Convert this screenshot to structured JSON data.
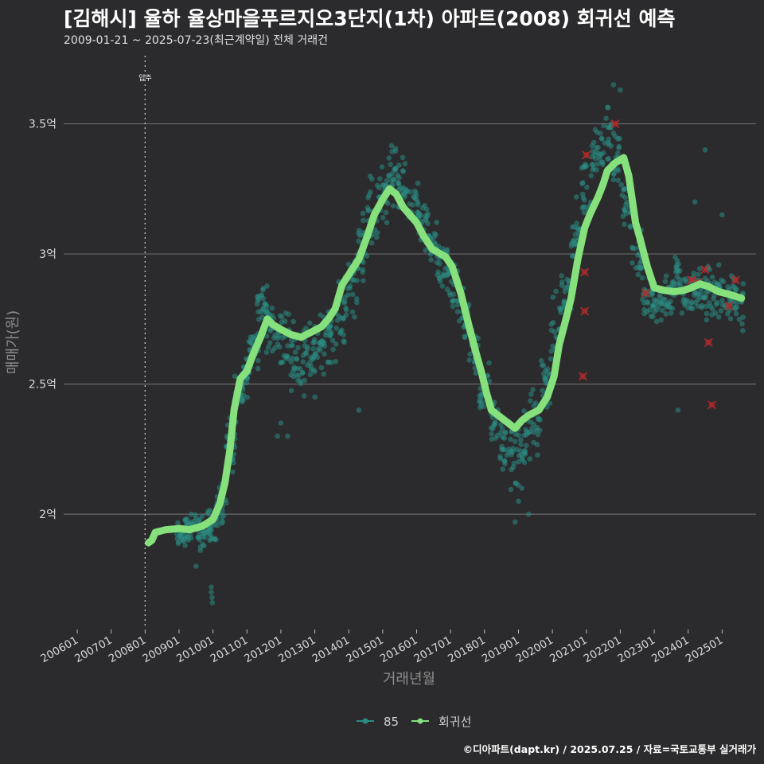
{
  "title": "[김해시] 율하 율상마을푸르지오3단지(1차) 아파트(2008) 회귀선 예측",
  "subtitle": "2009-01-21 ~ 2025-07-23(최근계약일) 전체 거래건",
  "credit": "©디아파트(dapt.kr) / 2025.07.25 / 자료=국토교통부 실거래가",
  "colors": {
    "background": "#2b2b2d",
    "grid": "#6a6a6c",
    "scatter": "#2a8c84",
    "regression": "#86e07c",
    "cancel_mark": "#b52a2a"
  },
  "chart_data": {
    "type": "scatter",
    "xlabel": "거래년월",
    "ylabel": "매매가(원)",
    "xlim": [
      2005.6,
      2026.0
    ],
    "ylim": [
      1.56,
      3.78
    ],
    "yticks": [
      {
        "value": 2.0,
        "label": "2억"
      },
      {
        "value": 2.5,
        "label": "2.5억"
      },
      {
        "value": 3.0,
        "label": "3억"
      },
      {
        "value": 3.5,
        "label": "3.5억"
      }
    ],
    "xticks": [
      {
        "value": 2006.0,
        "label": "200601"
      },
      {
        "value": 2007.0,
        "label": "200701"
      },
      {
        "value": 2008.0,
        "label": "200801"
      },
      {
        "value": 2009.0,
        "label": "200901"
      },
      {
        "value": 2010.0,
        "label": "201001"
      },
      {
        "value": 2011.0,
        "label": "201101"
      },
      {
        "value": 2012.0,
        "label": "201201"
      },
      {
        "value": 2013.0,
        "label": "201301"
      },
      {
        "value": 2014.0,
        "label": "201401"
      },
      {
        "value": 2015.0,
        "label": "201501"
      },
      {
        "value": 2016.0,
        "label": "201601"
      },
      {
        "value": 2017.0,
        "label": "201701"
      },
      {
        "value": 2018.0,
        "label": "201801"
      },
      {
        "value": 2019.0,
        "label": "201901"
      },
      {
        "value": 2020.0,
        "label": "202001"
      },
      {
        "value": 2021.0,
        "label": "202101"
      },
      {
        "value": 2022.0,
        "label": "202201"
      },
      {
        "value": 2023.0,
        "label": "202301"
      },
      {
        "value": 2024.0,
        "label": "202401"
      },
      {
        "value": 2025.0,
        "label": "202501"
      }
    ],
    "annotation": {
      "x": 2008.0,
      "label": "입주"
    },
    "legend": [
      {
        "name": "85",
        "type": "scatter"
      },
      {
        "name": "회귀선",
        "type": "line"
      }
    ],
    "legend_position": "bottom",
    "band": [
      [
        2009.05,
        1.92,
        0.07
      ],
      [
        2009.3,
        1.94,
        0.08
      ],
      [
        2009.55,
        1.93,
        0.1
      ],
      [
        2009.8,
        1.94,
        0.09
      ],
      [
        2010.0,
        1.97,
        0.1
      ],
      [
        2010.25,
        2.05,
        0.15
      ],
      [
        2010.5,
        2.25,
        0.15
      ],
      [
        2010.75,
        2.45,
        0.12
      ],
      [
        2011.0,
        2.55,
        0.12
      ],
      [
        2011.2,
        2.65,
        0.12
      ],
      [
        2011.45,
        2.8,
        0.12
      ],
      [
        2011.7,
        2.72,
        0.16
      ],
      [
        2012.0,
        2.68,
        0.18
      ],
      [
        2012.3,
        2.63,
        0.18
      ],
      [
        2012.6,
        2.6,
        0.18
      ],
      [
        2012.9,
        2.62,
        0.18
      ],
      [
        2013.2,
        2.66,
        0.16
      ],
      [
        2013.5,
        2.7,
        0.16
      ],
      [
        2013.8,
        2.78,
        0.17
      ],
      [
        2014.1,
        2.9,
        0.2
      ],
      [
        2014.4,
        3.0,
        0.2
      ],
      [
        2014.7,
        3.15,
        0.2
      ],
      [
        2015.0,
        3.25,
        0.18
      ],
      [
        2015.3,
        3.3,
        0.16
      ],
      [
        2015.6,
        3.25,
        0.14
      ],
      [
        2015.9,
        3.2,
        0.14
      ],
      [
        2016.2,
        3.1,
        0.14
      ],
      [
        2016.5,
        3.0,
        0.16
      ],
      [
        2016.8,
        2.95,
        0.16
      ],
      [
        2017.1,
        2.85,
        0.16
      ],
      [
        2017.4,
        2.75,
        0.18
      ],
      [
        2017.7,
        2.6,
        0.16
      ],
      [
        2018.0,
        2.48,
        0.15
      ],
      [
        2018.3,
        2.35,
        0.15
      ],
      [
        2018.6,
        2.28,
        0.18
      ],
      [
        2018.9,
        2.22,
        0.2
      ],
      [
        2019.2,
        2.28,
        0.18
      ],
      [
        2019.5,
        2.35,
        0.18
      ],
      [
        2019.8,
        2.5,
        0.16
      ],
      [
        2020.1,
        2.7,
        0.18
      ],
      [
        2020.4,
        2.85,
        0.18
      ],
      [
        2020.7,
        3.05,
        0.2
      ],
      [
        2021.0,
        3.25,
        0.18
      ],
      [
        2021.3,
        3.4,
        0.15
      ],
      [
        2021.6,
        3.45,
        0.15
      ],
      [
        2021.9,
        3.35,
        0.16
      ],
      [
        2022.2,
        3.2,
        0.16
      ],
      [
        2022.5,
        3.0,
        0.15
      ],
      [
        2022.8,
        2.85,
        0.14
      ],
      [
        2023.1,
        2.82,
        0.15
      ],
      [
        2023.4,
        2.85,
        0.15
      ],
      [
        2023.7,
        2.88,
        0.15
      ],
      [
        2024.0,
        2.85,
        0.15
      ],
      [
        2024.3,
        2.86,
        0.15
      ],
      [
        2024.6,
        2.85,
        0.16
      ],
      [
        2024.9,
        2.84,
        0.16
      ],
      [
        2025.2,
        2.84,
        0.16
      ],
      [
        2025.5,
        2.83,
        0.16
      ]
    ],
    "outliers": [
      [
        2009.95,
        1.7
      ],
      [
        2009.97,
        1.68
      ],
      [
        2009.98,
        1.66
      ],
      [
        2009.95,
        1.72
      ],
      [
        2009.5,
        1.8
      ],
      [
        2011.9,
        2.3
      ],
      [
        2012.0,
        2.35
      ],
      [
        2012.2,
        2.3
      ],
      [
        2013.0,
        2.45
      ],
      [
        2014.3,
        2.4
      ],
      [
        2019.0,
        2.05
      ],
      [
        2019.3,
        2.0
      ],
      [
        2018.9,
        1.97
      ],
      [
        2019.1,
        2.1
      ],
      [
        2022.0,
        3.63
      ],
      [
        2021.8,
        3.65
      ],
      [
        2024.5,
        3.4
      ],
      [
        2023.7,
        2.4
      ],
      [
        2025.0,
        3.15
      ],
      [
        2024.2,
        3.2
      ]
    ],
    "cancel_marks": [
      [
        2021.0,
        3.38
      ],
      [
        2021.85,
        3.5
      ],
      [
        2020.95,
        2.93
      ],
      [
        2020.95,
        2.78
      ],
      [
        2020.9,
        2.53
      ],
      [
        2022.75,
        2.85
      ],
      [
        2024.1,
        2.9
      ],
      [
        2024.5,
        2.94
      ],
      [
        2024.6,
        2.66
      ],
      [
        2024.7,
        2.42
      ],
      [
        2025.2,
        2.8
      ],
      [
        2025.4,
        2.9
      ],
      [
        2024.3,
        2.89
      ]
    ],
    "regression": [
      [
        2008.1,
        1.89
      ],
      [
        2008.2,
        1.9
      ],
      [
        2008.3,
        1.93
      ],
      [
        2008.6,
        1.94
      ],
      [
        2009.0,
        1.945
      ],
      [
        2009.3,
        1.94
      ],
      [
        2009.7,
        1.955
      ],
      [
        2010.0,
        1.98
      ],
      [
        2010.2,
        2.04
      ],
      [
        2010.35,
        2.12
      ],
      [
        2010.5,
        2.25
      ],
      [
        2010.62,
        2.4
      ],
      [
        2010.8,
        2.52
      ],
      [
        2011.0,
        2.55
      ],
      [
        2011.2,
        2.62
      ],
      [
        2011.4,
        2.68
      ],
      [
        2011.6,
        2.75
      ],
      [
        2011.75,
        2.73
      ],
      [
        2012.0,
        2.71
      ],
      [
        2012.3,
        2.69
      ],
      [
        2012.6,
        2.68
      ],
      [
        2012.9,
        2.7
      ],
      [
        2013.2,
        2.72
      ],
      [
        2013.4,
        2.75
      ],
      [
        2013.6,
        2.79
      ],
      [
        2013.8,
        2.88
      ],
      [
        2014.0,
        2.92
      ],
      [
        2014.3,
        2.98
      ],
      [
        2014.55,
        3.07
      ],
      [
        2014.75,
        3.15
      ],
      [
        2015.0,
        3.21
      ],
      [
        2015.2,
        3.25
      ],
      [
        2015.4,
        3.23
      ],
      [
        2015.6,
        3.18
      ],
      [
        2015.8,
        3.15
      ],
      [
        2016.0,
        3.12
      ],
      [
        2016.2,
        3.07
      ],
      [
        2016.45,
        3.02
      ],
      [
        2016.7,
        3.0
      ],
      [
        2016.85,
        2.99
      ],
      [
        2017.05,
        2.95
      ],
      [
        2017.3,
        2.85
      ],
      [
        2017.55,
        2.72
      ],
      [
        2017.75,
        2.62
      ],
      [
        2017.9,
        2.55
      ],
      [
        2018.05,
        2.47
      ],
      [
        2018.2,
        2.4
      ],
      [
        2018.5,
        2.37
      ],
      [
        2018.7,
        2.35
      ],
      [
        2018.9,
        2.33
      ],
      [
        2019.1,
        2.36
      ],
      [
        2019.3,
        2.38
      ],
      [
        2019.6,
        2.4
      ],
      [
        2019.85,
        2.45
      ],
      [
        2020.05,
        2.53
      ],
      [
        2020.2,
        2.65
      ],
      [
        2020.4,
        2.75
      ],
      [
        2020.55,
        2.83
      ],
      [
        2020.75,
        2.98
      ],
      [
        2020.95,
        3.1
      ],
      [
        2021.1,
        3.15
      ],
      [
        2021.35,
        3.22
      ],
      [
        2021.5,
        3.27
      ],
      [
        2021.62,
        3.32
      ],
      [
        2021.85,
        3.35
      ],
      [
        2022.1,
        3.37
      ],
      [
        2022.25,
        3.3
      ],
      [
        2022.45,
        3.12
      ],
      [
        2022.6,
        3.05
      ],
      [
        2022.8,
        2.95
      ],
      [
        2023.0,
        2.87
      ],
      [
        2023.3,
        2.86
      ],
      [
        2023.6,
        2.855
      ],
      [
        2023.85,
        2.86
      ],
      [
        2024.1,
        2.87
      ],
      [
        2024.35,
        2.885
      ],
      [
        2024.6,
        2.875
      ],
      [
        2024.9,
        2.855
      ],
      [
        2025.2,
        2.845
      ],
      [
        2025.45,
        2.835
      ],
      [
        2025.57,
        2.83
      ]
    ]
  }
}
